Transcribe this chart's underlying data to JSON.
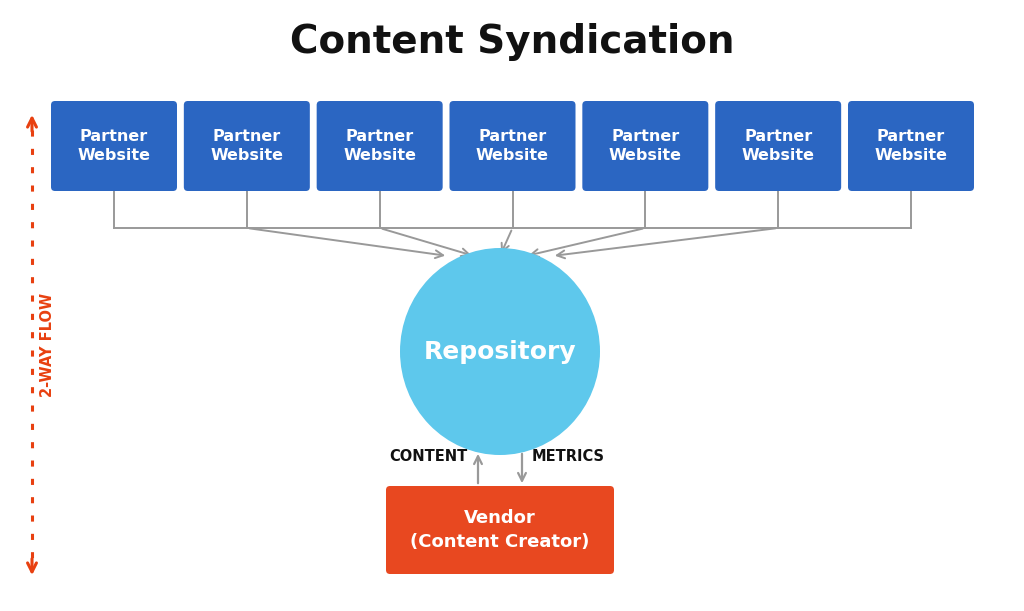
{
  "title": "Content Syndication",
  "title_fontsize": 28,
  "title_fontweight": "bold",
  "bg_color": "#ffffff",
  "partner_box_color": "#2B66C2",
  "partner_text_color": "#ffffff",
  "partner_label": "Partner\nWebsite",
  "partner_count": 7,
  "partner_fontsize": 11.5,
  "repo_color": "#5EC8EC",
  "repo_text": "Repository",
  "repo_text_color": "#ffffff",
  "repo_fontsize": 18,
  "vendor_box_color": "#E84820",
  "vendor_text": "Vendor\n(Content Creator)",
  "vendor_text_color": "#ffffff",
  "vendor_fontsize": 13,
  "arrow_color": "#999999",
  "two_way_color": "#E84010",
  "content_label": "CONTENT",
  "metrics_label": "METRICS",
  "label_fontsize": 10.5,
  "two_way_label": "2-WAY FLOW",
  "two_way_fontsize": 10.5
}
